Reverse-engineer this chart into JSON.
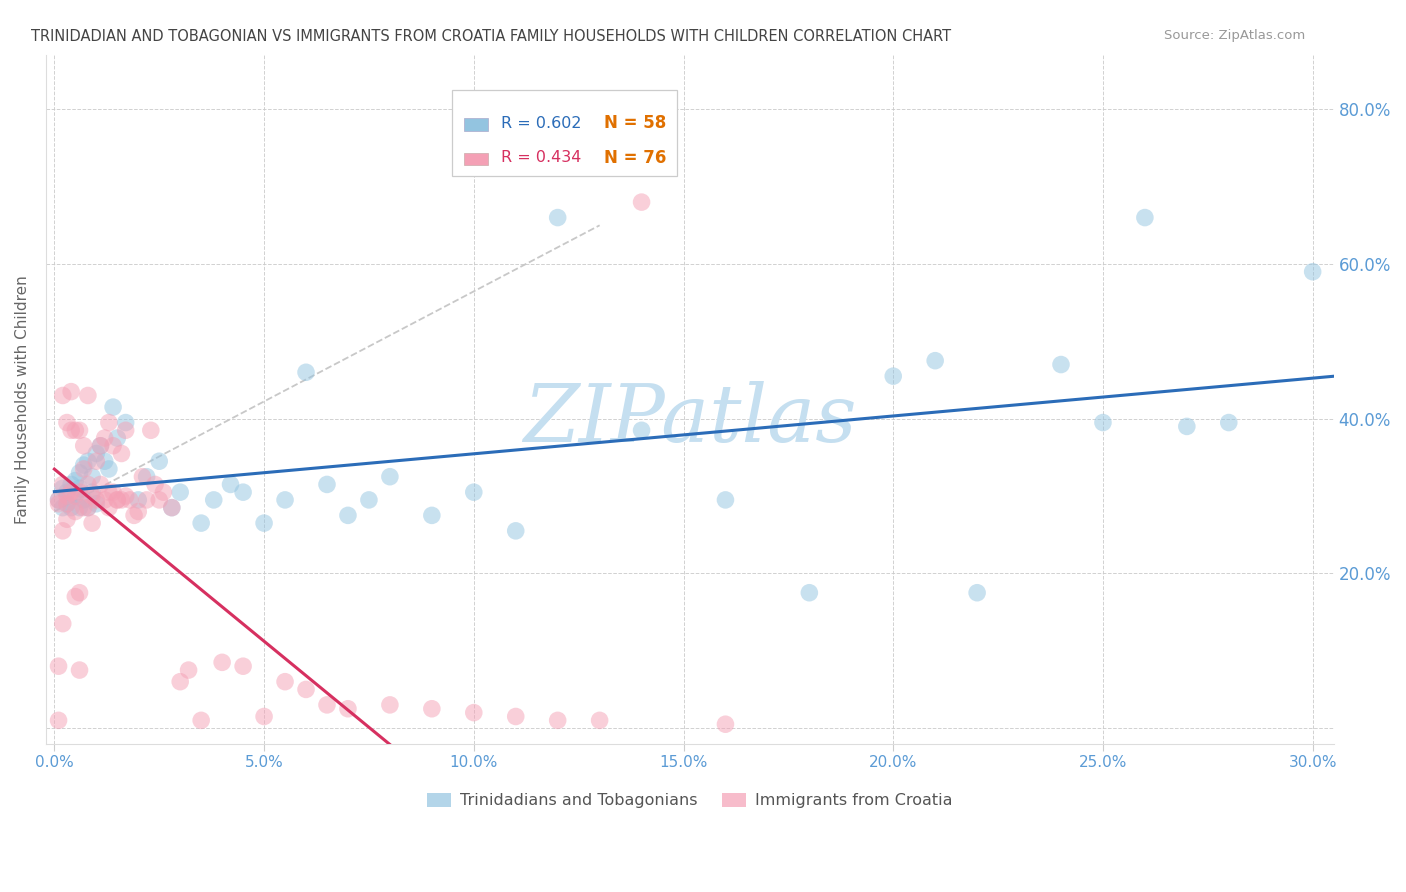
{
  "title": "TRINIDADIAN AND TOBAGONIAN VS IMMIGRANTS FROM CROATIA FAMILY HOUSEHOLDS WITH CHILDREN CORRELATION CHART",
  "source": "Source: ZipAtlas.com",
  "ylabel": "Family Households with Children",
  "xlim": [
    -0.002,
    0.305
  ],
  "ylim": [
    -0.02,
    0.87
  ],
  "blue_label": "Trinidadians and Tobagonians",
  "pink_label": "Immigrants from Croatia",
  "blue_R": "0.602",
  "blue_N": "58",
  "pink_R": "0.434",
  "pink_N": "76",
  "blue_color": "#93c4e0",
  "pink_color": "#f4a0b5",
  "blue_line_color": "#2b6cb8",
  "pink_line_color": "#d63060",
  "axis_color": "#5b9bd5",
  "title_color": "#444444",
  "watermark": "ZIPatlas",
  "watermark_color": "#c5dff0",
  "blue_x": [
    0.001,
    0.002,
    0.002,
    0.003,
    0.003,
    0.004,
    0.004,
    0.005,
    0.005,
    0.006,
    0.006,
    0.006,
    0.007,
    0.007,
    0.008,
    0.008,
    0.009,
    0.009,
    0.01,
    0.01,
    0.011,
    0.012,
    0.013,
    0.014,
    0.015,
    0.017,
    0.02,
    0.022,
    0.025,
    0.028,
    0.03,
    0.035,
    0.038,
    0.042,
    0.045,
    0.05,
    0.055,
    0.06,
    0.065,
    0.07,
    0.075,
    0.08,
    0.09,
    0.1,
    0.11,
    0.12,
    0.14,
    0.16,
    0.18,
    0.2,
    0.21,
    0.22,
    0.24,
    0.25,
    0.26,
    0.27,
    0.28,
    0.3
  ],
  "blue_y": [
    0.295,
    0.31,
    0.285,
    0.305,
    0.29,
    0.315,
    0.285,
    0.32,
    0.3,
    0.33,
    0.285,
    0.31,
    0.34,
    0.295,
    0.345,
    0.285,
    0.305,
    0.325,
    0.355,
    0.29,
    0.365,
    0.345,
    0.335,
    0.415,
    0.375,
    0.395,
    0.295,
    0.325,
    0.345,
    0.285,
    0.305,
    0.265,
    0.295,
    0.315,
    0.305,
    0.265,
    0.295,
    0.46,
    0.315,
    0.275,
    0.295,
    0.325,
    0.275,
    0.305,
    0.255,
    0.66,
    0.385,
    0.295,
    0.175,
    0.455,
    0.475,
    0.175,
    0.47,
    0.395,
    0.66,
    0.39,
    0.395,
    0.59
  ],
  "pink_x": [
    0.001,
    0.001,
    0.001,
    0.001,
    0.002,
    0.002,
    0.002,
    0.002,
    0.003,
    0.003,
    0.003,
    0.003,
    0.004,
    0.004,
    0.004,
    0.005,
    0.005,
    0.005,
    0.005,
    0.006,
    0.006,
    0.006,
    0.006,
    0.007,
    0.007,
    0.007,
    0.008,
    0.008,
    0.008,
    0.009,
    0.009,
    0.01,
    0.01,
    0.011,
    0.011,
    0.012,
    0.012,
    0.013,
    0.013,
    0.013,
    0.014,
    0.014,
    0.015,
    0.015,
    0.016,
    0.016,
    0.017,
    0.017,
    0.018,
    0.019,
    0.02,
    0.021,
    0.022,
    0.023,
    0.024,
    0.025,
    0.026,
    0.028,
    0.03,
    0.032,
    0.035,
    0.04,
    0.045,
    0.05,
    0.055,
    0.06,
    0.065,
    0.07,
    0.08,
    0.09,
    0.1,
    0.11,
    0.12,
    0.13,
    0.14,
    0.16
  ],
  "pink_y": [
    0.295,
    0.01,
    0.08,
    0.29,
    0.135,
    0.255,
    0.315,
    0.43,
    0.3,
    0.27,
    0.29,
    0.395,
    0.385,
    0.435,
    0.305,
    0.385,
    0.3,
    0.28,
    0.17,
    0.305,
    0.385,
    0.175,
    0.075,
    0.335,
    0.365,
    0.285,
    0.285,
    0.315,
    0.43,
    0.3,
    0.265,
    0.345,
    0.295,
    0.365,
    0.315,
    0.375,
    0.295,
    0.305,
    0.285,
    0.395,
    0.305,
    0.365,
    0.295,
    0.295,
    0.355,
    0.295,
    0.3,
    0.385,
    0.295,
    0.275,
    0.28,
    0.325,
    0.295,
    0.385,
    0.315,
    0.295,
    0.305,
    0.285,
    0.06,
    0.075,
    0.01,
    0.085,
    0.08,
    0.015,
    0.06,
    0.05,
    0.03,
    0.025,
    0.03,
    0.025,
    0.02,
    0.015,
    0.01,
    0.01,
    0.68,
    0.005
  ]
}
